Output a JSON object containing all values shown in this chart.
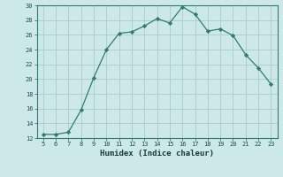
{
  "x": [
    5,
    6,
    7,
    8,
    9,
    10,
    11,
    12,
    13,
    14,
    15,
    16,
    17,
    18,
    19,
    20,
    21,
    22,
    23
  ],
  "y": [
    12.5,
    12.5,
    12.8,
    15.8,
    20.2,
    24.0,
    26.2,
    26.4,
    27.2,
    28.2,
    27.6,
    29.8,
    28.8,
    26.5,
    26.8,
    25.9,
    23.3,
    21.5,
    19.3
  ],
  "line_color": "#2e7d6e",
  "marker": "D",
  "marker_size": 2.2,
  "bg_color": "#cce8e8",
  "grid_color": "#aacccc",
  "xlabel": "Humidex (Indice chaleur)",
  "ylim": [
    12,
    30
  ],
  "yticks": [
    12,
    14,
    16,
    18,
    20,
    22,
    24,
    26,
    28,
    30
  ],
  "xticks": [
    5,
    6,
    7,
    8,
    9,
    10,
    11,
    12,
    13,
    14,
    15,
    16,
    17,
    18,
    19,
    20,
    21,
    22,
    23
  ],
  "xlim": [
    4.5,
    23.5
  ]
}
